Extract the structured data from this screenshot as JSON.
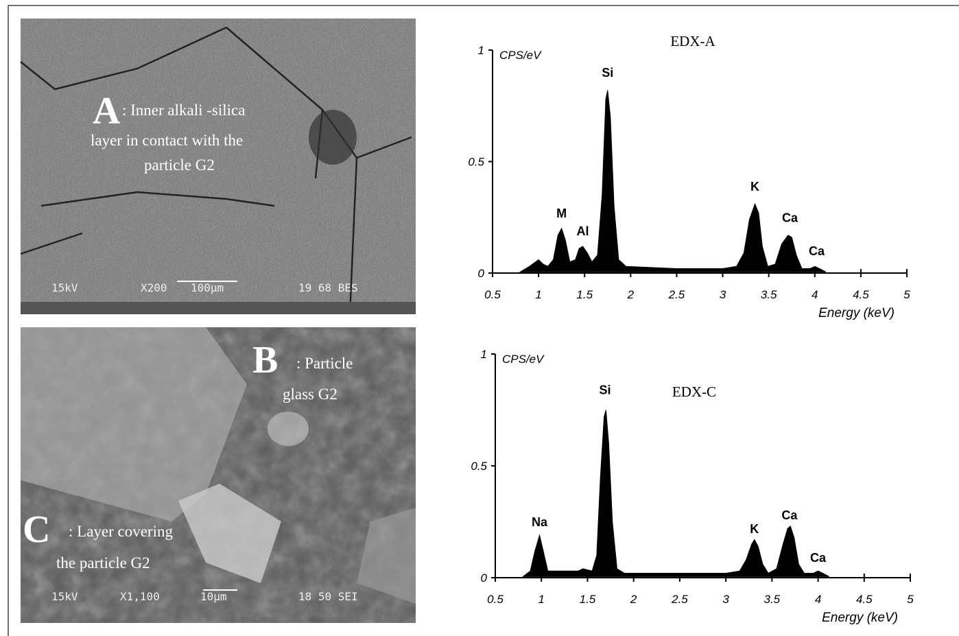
{
  "chart_data": [
    {
      "type": "area",
      "title": "EDX-A",
      "y_label": "CPS/eV",
      "x_label": "Energy (keV)",
      "color": "#000000",
      "x": [
        0.8,
        0.9,
        0.95,
        1.0,
        1.05,
        1.1,
        1.16,
        1.21,
        1.25,
        1.29,
        1.34,
        1.4,
        1.44,
        1.48,
        1.53,
        1.58,
        1.64,
        1.69,
        1.73,
        1.75,
        1.78,
        1.82,
        1.87,
        1.95,
        2.5,
        3.0,
        3.15,
        3.23,
        3.29,
        3.35,
        3.39,
        3.43,
        3.49,
        3.57,
        3.64,
        3.71,
        3.75,
        3.8,
        3.86,
        3.95,
        4.0,
        4.05,
        4.12
      ],
      "values": [
        0.005,
        0.03,
        0.045,
        0.06,
        0.04,
        0.03,
        0.06,
        0.17,
        0.2,
        0.15,
        0.05,
        0.06,
        0.11,
        0.12,
        0.09,
        0.05,
        0.08,
        0.35,
        0.78,
        0.82,
        0.7,
        0.3,
        0.06,
        0.03,
        0.02,
        0.02,
        0.03,
        0.09,
        0.24,
        0.31,
        0.27,
        0.12,
        0.03,
        0.04,
        0.13,
        0.17,
        0.16,
        0.08,
        0.02,
        0.02,
        0.03,
        0.02,
        0.005
      ],
      "annotations": [
        {
          "text": "M",
          "x": 1.25,
          "y": 0.25
        },
        {
          "text": "Al",
          "x": 1.48,
          "y": 0.17
        },
        {
          "text": "Si",
          "x": 1.75,
          "y": 0.88
        },
        {
          "text": "K",
          "x": 3.35,
          "y": 0.37
        },
        {
          "text": "Ca",
          "x": 3.73,
          "y": 0.23
        },
        {
          "text": "Ca",
          "x": 4.02,
          "y": 0.08
        }
      ],
      "xlim": [
        0.5,
        5
      ],
      "xticks": [
        0.5,
        1,
        1.5,
        2,
        2.5,
        3,
        3.5,
        4,
        4.5,
        5
      ],
      "ylim": [
        0,
        1
      ],
      "yticks": [
        0,
        0.5,
        1
      ]
    },
    {
      "type": "area",
      "title": "EDX-C",
      "y_label": "CPS/eV",
      "x_label": "Energy (keV)",
      "color": "#000000",
      "x": [
        0.8,
        0.88,
        0.93,
        0.98,
        1.02,
        1.07,
        1.15,
        1.4,
        1.45,
        1.55,
        1.6,
        1.64,
        1.68,
        1.7,
        1.73,
        1.77,
        1.82,
        1.9,
        2.5,
        3.0,
        3.15,
        3.22,
        3.28,
        3.31,
        3.35,
        3.4,
        3.46,
        3.55,
        3.62,
        3.67,
        3.7,
        3.74,
        3.79,
        3.85,
        3.95,
        4.0,
        4.05,
        4.12
      ],
      "values": [
        0.005,
        0.03,
        0.12,
        0.19,
        0.12,
        0.03,
        0.03,
        0.03,
        0.04,
        0.03,
        0.1,
        0.45,
        0.72,
        0.75,
        0.6,
        0.25,
        0.04,
        0.02,
        0.02,
        0.02,
        0.03,
        0.08,
        0.15,
        0.17,
        0.14,
        0.06,
        0.02,
        0.04,
        0.15,
        0.22,
        0.23,
        0.18,
        0.06,
        0.02,
        0.02,
        0.03,
        0.02,
        0.005
      ],
      "annotations": [
        {
          "text": "Na",
          "x": 0.98,
          "y": 0.23
        },
        {
          "text": "Si",
          "x": 1.69,
          "y": 0.82
        },
        {
          "text": "K",
          "x": 3.31,
          "y": 0.2
        },
        {
          "text": "Ca",
          "x": 3.69,
          "y": 0.26
        },
        {
          "text": "Ca",
          "x": 4.0,
          "y": 0.07
        }
      ],
      "xlim": [
        0.5,
        5
      ],
      "xticks": [
        0.5,
        1,
        1.5,
        2,
        2.5,
        3,
        3.5,
        4,
        4.5,
        5
      ],
      "ylim": [
        0,
        1
      ],
      "yticks": [
        0,
        0.5,
        1
      ]
    }
  ],
  "images": [
    {
      "labels": [
        {
          "letter": "A",
          "lines": [
            ":  Inner alkali -silica",
            "layer in contact with the",
            "particle  G2"
          ]
        }
      ],
      "footer": [
        "15kV",
        "X200",
        "100µm",
        "19 68 BES"
      ]
    },
    {
      "labels": [
        {
          "letter": "B",
          "lines": [
            ":  Particle",
            "glass G2"
          ]
        },
        {
          "letter": "C",
          "lines": [
            ":  Layer covering",
            "the particle G2"
          ]
        }
      ],
      "footer": [
        "15kV",
        "X1,100",
        "10µm",
        "18 50 SEI"
      ]
    }
  ]
}
